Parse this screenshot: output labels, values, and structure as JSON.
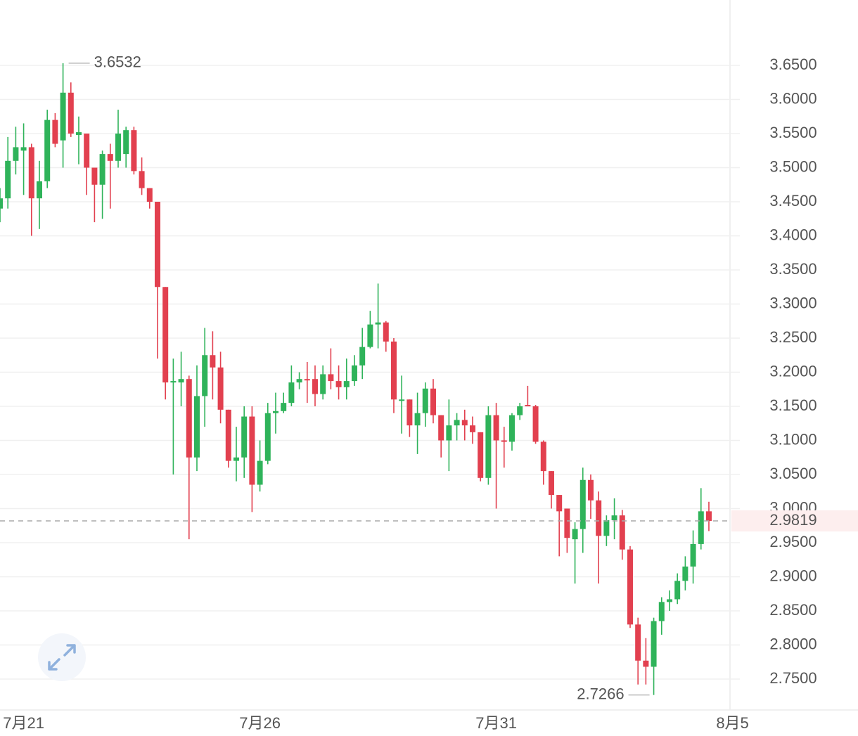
{
  "chart_data": {
    "type": "candlestick",
    "x": [
      0,
      1,
      2,
      3,
      4,
      5,
      6,
      7,
      8,
      9,
      10,
      11,
      12,
      13,
      14,
      15,
      16,
      17,
      18,
      19,
      20,
      21,
      22,
      23,
      24,
      25,
      26,
      27,
      28,
      29,
      30,
      31,
      32,
      33,
      34,
      35,
      36,
      37,
      38,
      39,
      40,
      41,
      42,
      43,
      44,
      45,
      46,
      47,
      48,
      49,
      50,
      51,
      52,
      53,
      54,
      55,
      56,
      57,
      58,
      59,
      60,
      61,
      62,
      63,
      64,
      65,
      66,
      67,
      68,
      69,
      70,
      71,
      72,
      73,
      74,
      75,
      76,
      77,
      78,
      79,
      80,
      81,
      82,
      83,
      84,
      85,
      86,
      87,
      88,
      89,
      90
    ],
    "open": [
      3.44,
      3.455,
      3.51,
      3.525,
      3.53,
      3.455,
      3.48,
      3.57,
      3.54,
      3.61,
      3.548,
      3.55,
      3.5,
      3.475,
      3.52,
      3.51,
      3.52,
      3.555,
      3.495,
      3.47,
      3.45,
      3.325,
      3.185,
      3.185,
      3.19,
      3.075,
      3.165,
      3.225,
      3.207,
      3.145,
      3.07,
      3.075,
      3.135,
      3.035,
      3.07,
      3.14,
      3.143,
      3.155,
      3.185,
      3.19,
      3.19,
      3.168,
      3.197,
      3.187,
      3.178,
      3.187,
      3.21,
      3.237,
      3.27,
      3.273,
      3.245,
      3.158,
      3.16,
      3.122,
      3.14,
      3.176,
      3.137,
      3.1,
      3.122,
      3.13,
      3.122,
      3.112,
      3.045,
      3.137,
      3.1,
      3.098,
      3.137,
      3.152,
      3.15,
      3.098,
      3.055,
      3.02,
      3.0,
      2.955,
      2.97,
      3.042,
      3.012,
      2.96,
      2.983,
      2.99,
      2.94,
      2.83,
      2.777,
      2.768,
      2.835,
      2.863,
      2.867,
      2.894,
      2.915,
      2.948,
      2.996
    ],
    "high": [
      3.47,
      3.545,
      3.56,
      3.565,
      3.535,
      3.51,
      3.585,
      3.58,
      3.6532,
      3.625,
      3.575,
      3.55,
      3.5,
      3.525,
      3.535,
      3.585,
      3.56,
      3.56,
      3.515,
      3.47,
      3.45,
      3.325,
      3.22,
      3.23,
      3.195,
      3.21,
      3.265,
      3.26,
      3.23,
      3.145,
      3.12,
      3.15,
      3.15,
      3.1,
      3.155,
      3.17,
      3.17,
      3.21,
      3.2,
      3.215,
      3.21,
      3.21,
      3.235,
      3.21,
      3.22,
      3.225,
      3.265,
      3.29,
      3.33,
      3.275,
      3.25,
      3.195,
      3.16,
      3.17,
      3.185,
      3.19,
      3.137,
      3.16,
      3.14,
      3.145,
      3.135,
      3.112,
      3.15,
      3.155,
      3.12,
      3.14,
      3.155,
      3.18,
      3.152,
      3.1,
      3.055,
      3.02,
      3.0,
      2.98,
      3.06,
      3.05,
      3.025,
      2.99,
      3.015,
      2.998,
      2.945,
      2.84,
      2.81,
      2.84,
      2.87,
      2.88,
      2.905,
      2.93,
      2.968,
      3.03,
      3.01
    ],
    "low": [
      3.42,
      3.44,
      3.49,
      3.46,
      3.4,
      3.41,
      3.47,
      3.53,
      3.5,
      3.545,
      3.505,
      3.46,
      3.42,
      3.425,
      3.44,
      3.5,
      3.5,
      3.49,
      3.46,
      3.44,
      3.22,
      3.16,
      3.05,
      3.15,
      2.955,
      3.055,
      3.12,
      3.16,
      3.125,
      3.06,
      3.04,
      3.045,
      2.995,
      3.025,
      3.065,
      3.11,
      3.14,
      3.15,
      3.175,
      3.155,
      3.15,
      3.16,
      3.175,
      3.16,
      3.16,
      3.18,
      3.19,
      3.235,
      3.235,
      3.23,
      3.14,
      3.11,
      3.105,
      3.08,
      3.12,
      3.125,
      3.075,
      3.055,
      3.1,
      3.1,
      3.095,
      3.04,
      3.035,
      3.0,
      3.06,
      3.085,
      3.13,
      3.15,
      3.095,
      3.035,
      3.0,
      2.93,
      2.935,
      2.89,
      2.935,
      2.985,
      2.89,
      2.945,
      2.955,
      2.925,
      2.825,
      2.742,
      2.742,
      2.7266,
      2.815,
      2.85,
      2.86,
      2.88,
      2.89,
      2.94,
      2.967
    ],
    "close": [
      3.455,
      3.51,
      3.53,
      3.53,
      3.455,
      3.48,
      3.57,
      3.535,
      3.61,
      3.55,
      3.552,
      3.5,
      3.475,
      3.52,
      3.51,
      3.55,
      3.555,
      3.495,
      3.47,
      3.45,
      3.325,
      3.185,
      3.187,
      3.19,
      3.075,
      3.165,
      3.225,
      3.207,
      3.145,
      3.07,
      3.075,
      3.135,
      3.035,
      3.07,
      3.14,
      3.143,
      3.155,
      3.185,
      3.19,
      3.188,
      3.168,
      3.197,
      3.187,
      3.178,
      3.187,
      3.21,
      3.237,
      3.27,
      3.273,
      3.245,
      3.16,
      3.16,
      3.122,
      3.14,
      3.176,
      3.137,
      3.1,
      3.122,
      3.13,
      3.122,
      3.112,
      3.045,
      3.137,
      3.1,
      3.098,
      3.137,
      3.15,
      3.15,
      3.098,
      3.055,
      3.02,
      2.996,
      2.957,
      2.97,
      3.042,
      3.012,
      2.96,
      2.983,
      2.99,
      2.94,
      2.83,
      2.777,
      2.768,
      2.835,
      2.863,
      2.867,
      2.894,
      2.915,
      2.948,
      2.996,
      2.9819
    ],
    "up_color": "#2fb35a",
    "down_color": "#e2404f",
    "xlim": [
      0,
      92.86
    ],
    "xticks": [
      {
        "value": 3,
        "label": "7月21"
      },
      {
        "value": 33,
        "label": "7月26"
      },
      {
        "value": 63,
        "label": "7月31"
      },
      {
        "value": 93,
        "label": "8月5"
      }
    ],
    "ylim": [
      2.7046,
      3.7459
    ],
    "yticks": [
      {
        "value": 2.75,
        "label": "2.7500"
      },
      {
        "value": 2.8,
        "label": "2.8000"
      },
      {
        "value": 2.85,
        "label": "2.8500"
      },
      {
        "value": 2.9,
        "label": "2.9000"
      },
      {
        "value": 2.95,
        "label": "2.9500"
      },
      {
        "value": 3.0,
        "label": "3.0000"
      },
      {
        "value": 3.05,
        "label": "3.0500"
      },
      {
        "value": 3.1,
        "label": "3.1000"
      },
      {
        "value": 3.15,
        "label": "3.1500"
      },
      {
        "value": 3.2,
        "label": "3.2000"
      },
      {
        "value": 3.25,
        "label": "3.2500"
      },
      {
        "value": 3.3,
        "label": "3.3000"
      },
      {
        "value": 3.35,
        "label": "3.3500"
      },
      {
        "value": 3.4,
        "label": "3.4000"
      },
      {
        "value": 3.45,
        "label": "3.4500"
      },
      {
        "value": 3.5,
        "label": "3.5000"
      },
      {
        "value": 3.55,
        "label": "3.5500"
      },
      {
        "value": 3.6,
        "label": "3.6000"
      },
      {
        "value": 3.65,
        "label": "3.6500"
      }
    ],
    "grid": true,
    "high_marker": {
      "index": 8,
      "value": 3.6532
    },
    "low_marker": {
      "index": 83,
      "value": 2.7266
    },
    "last_price": 2.9819
  }
}
